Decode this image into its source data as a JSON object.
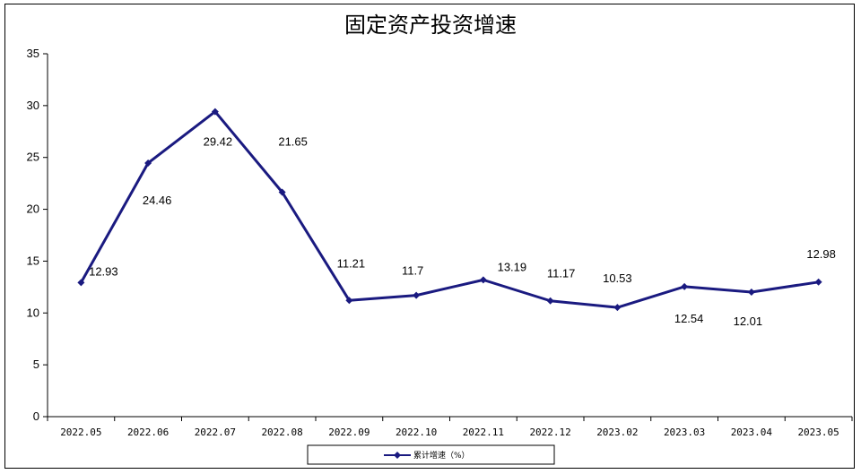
{
  "chart_data": {
    "type": "line",
    "title": "固定资产投资增速",
    "categories": [
      "2022.05",
      "2022.06",
      "2022.07",
      "2022.08",
      "2022.09",
      "2022.10",
      "2022.11",
      "2022.12",
      "2023.02",
      "2023.03",
      "2023.04",
      "2023.05"
    ],
    "series": [
      {
        "name": "累计增速（%）",
        "values": [
          12.93,
          24.46,
          29.42,
          21.65,
          11.21,
          11.7,
          13.19,
          11.17,
          10.53,
          12.54,
          12.01,
          12.98
        ],
        "color": "#1a1a80"
      }
    ],
    "ylim": [
      0,
      35
    ],
    "yticks": [
      0,
      5,
      10,
      15,
      20,
      25,
      30,
      35
    ],
    "grid": false,
    "legend_position": "bottom"
  }
}
